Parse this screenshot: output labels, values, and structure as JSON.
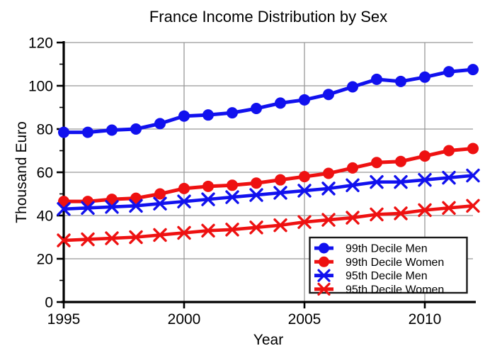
{
  "chart_data": {
    "type": "line",
    "title": "France Income Distribution by Sex",
    "xlabel": "Year",
    "ylabel": "Thousand Euro",
    "xlim": [
      1995,
      2012
    ],
    "ylim": [
      0,
      120
    ],
    "xticks": [
      1995,
      2000,
      2005,
      2010
    ],
    "yticks": [
      0,
      20,
      40,
      60,
      80,
      100,
      120
    ],
    "grid": true,
    "grid_color": "#999999",
    "axis_color": "#000000",
    "background": "#ffffff",
    "legend_position": "lower right",
    "x": [
      1995,
      1996,
      1997,
      1998,
      1999,
      2000,
      2001,
      2002,
      2003,
      2004,
      2005,
      2006,
      2007,
      2008,
      2009,
      2010,
      2011,
      2012
    ],
    "series": [
      {
        "name": "99th Decile Men",
        "color": "#1111ee",
        "marker": "circle",
        "values": [
          78.5,
          78.5,
          79.5,
          80,
          82.5,
          86,
          86.5,
          87.5,
          89.5,
          92,
          93.5,
          96,
          99.5,
          103,
          102,
          104,
          106.5,
          107.5
        ]
      },
      {
        "name": "99th Decile Women",
        "color": "#ee1111",
        "marker": "circle",
        "values": [
          46.5,
          46.5,
          47.5,
          48,
          50,
          52.5,
          53.5,
          54,
          55,
          56.5,
          58,
          59.5,
          62,
          64.5,
          65,
          67.5,
          70,
          71
        ]
      },
      {
        "name": "95th Decile Men",
        "color": "#1111ee",
        "marker": "x",
        "values": [
          43,
          43.5,
          44,
          44.5,
          45.5,
          46.5,
          47.5,
          48.5,
          49.5,
          50.5,
          51.5,
          52.5,
          54,
          55.5,
          55.5,
          56.5,
          57.5,
          58.5
        ]
      },
      {
        "name": "95th Decile Women",
        "color": "#ee1111",
        "marker": "x",
        "values": [
          28.5,
          29,
          29.5,
          30,
          31,
          32,
          33,
          33.5,
          34.5,
          35.5,
          37,
          38,
          39,
          40.5,
          41,
          42.5,
          43.5,
          44.5
        ]
      }
    ]
  }
}
